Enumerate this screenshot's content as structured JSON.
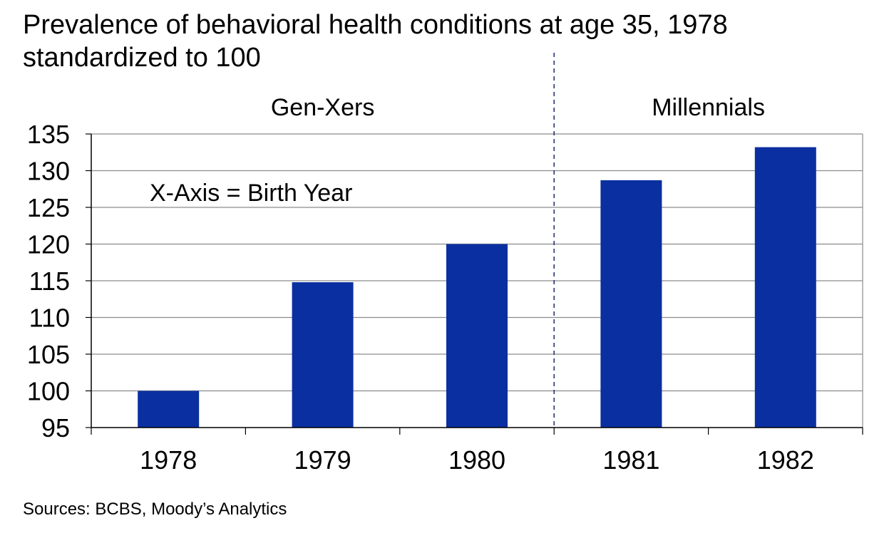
{
  "title": "Prevalence of behavioral health conditions at age 35, 1978",
  "subtitle": "standardized to 100",
  "source": "Sources: BCBS, Moody’s Analytics",
  "chart_data": {
    "type": "bar",
    "categories": [
      "1978",
      "1979",
      "1980",
      "1981",
      "1982"
    ],
    "values": [
      100,
      114.8,
      120,
      128.7,
      133.2
    ],
    "ylim": [
      95,
      135
    ],
    "yticks": [
      95,
      100,
      105,
      110,
      115,
      120,
      125,
      130,
      135
    ],
    "grid": true,
    "legend": "none",
    "bar_color": "#0a2fa0",
    "annotation": "X-Axis = Birth Year",
    "groups": [
      {
        "label": "Gen-Xers",
        "categories": [
          "1978",
          "1979",
          "1980"
        ]
      },
      {
        "label": "Millennials",
        "categories": [
          "1981",
          "1982"
        ]
      }
    ],
    "divider": "between 1980 and 1981, dashed"
  }
}
